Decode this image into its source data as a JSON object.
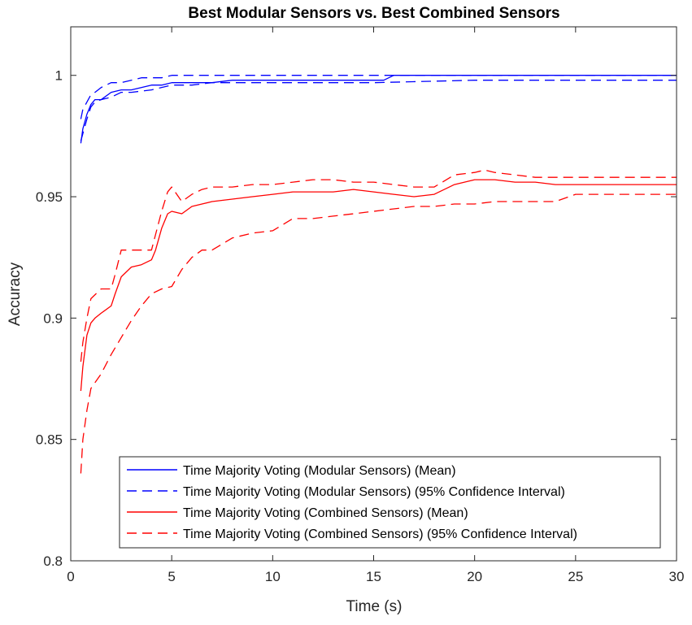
{
  "chart_data": {
    "type": "line",
    "title": "Best Modular Sensors vs. Best Combined Sensors",
    "xlabel": "Time (s)",
    "ylabel": "Accuracy",
    "xlim": [
      0,
      30
    ],
    "ylim": [
      0.8,
      1.02
    ],
    "xticks": [
      0,
      5,
      10,
      15,
      20,
      25,
      30
    ],
    "xtick_labels": [
      "0",
      "5",
      "10",
      "15",
      "20",
      "25",
      "30"
    ],
    "yticks": [
      0.8,
      0.85,
      0.9,
      0.95,
      1.0
    ],
    "ytick_labels": [
      "0.8",
      "0.85",
      "0.9",
      "0.95",
      "1"
    ],
    "grid": false,
    "legend_position": "bottom-right",
    "series": [
      {
        "name": "Time Majority Voting (Modular Sensors) (Mean)",
        "color": "#0000ff",
        "dash": "solid",
        "x": [
          0.5,
          0.6,
          0.8,
          1.0,
          1.2,
          1.5,
          2.0,
          2.5,
          3.0,
          4.0,
          4.5,
          5.0,
          6.0,
          7.0,
          8.0,
          10.0,
          12.0,
          14.0,
          15.5,
          16.0,
          20.0,
          25.0,
          30.0
        ],
        "y": [
          0.972,
          0.978,
          0.984,
          0.988,
          0.99,
          0.99,
          0.993,
          0.994,
          0.994,
          0.996,
          0.996,
          0.997,
          0.997,
          0.997,
          0.998,
          0.998,
          0.998,
          0.998,
          0.998,
          1.0,
          1.0,
          1.0,
          1.0
        ]
      },
      {
        "name": "Time Majority Voting (Modular Sensors) (95% Confidence Interval)",
        "color": "#0000ff",
        "dash": "dashed",
        "x": [
          0.5,
          0.6,
          0.8,
          1.0,
          1.2,
          1.5,
          2.0,
          2.5,
          3.0,
          3.5,
          4.0,
          4.5,
          5.0,
          6.0,
          7.0,
          8.0,
          10.0,
          15.0,
          20.0,
          25.0,
          30.0
        ],
        "y": [
          0.982,
          0.986,
          0.989,
          0.992,
          0.993,
          0.995,
          0.997,
          0.997,
          0.998,
          0.999,
          0.999,
          0.999,
          1.0,
          1.0,
          1.0,
          1.0,
          1.0,
          1.0,
          1.0,
          1.0,
          1.0
        ]
      },
      {
        "name": "Time Majority Voting (Modular Sensors) (95% Confidence Interval)",
        "color": "#0000ff",
        "dash": "dashed",
        "x": [
          0.5,
          0.6,
          0.8,
          1.0,
          1.2,
          1.5,
          2.0,
          2.5,
          3.0,
          4.0,
          5.0,
          6.0,
          7.0,
          8.0,
          10.0,
          15.0,
          20.0,
          25.0,
          30.0
        ],
        "y": [
          0.973,
          0.976,
          0.982,
          0.987,
          0.989,
          0.99,
          0.991,
          0.993,
          0.993,
          0.994,
          0.996,
          0.996,
          0.997,
          0.997,
          0.997,
          0.997,
          0.998,
          0.998,
          0.998
        ]
      },
      {
        "name": "Time Majority Voting (Combined Sensors) (Mean)",
        "color": "#ff0000",
        "dash": "solid",
        "x": [
          0.5,
          0.6,
          0.8,
          1.0,
          1.2,
          1.5,
          2.0,
          2.2,
          2.5,
          3.0,
          3.5,
          4.0,
          4.2,
          4.5,
          4.8,
          5.0,
          5.5,
          6.0,
          6.5,
          7.0,
          8.0,
          9.0,
          10.0,
          11.0,
          12.0,
          13.0,
          14.0,
          15.0,
          16.0,
          17.0,
          18.0,
          19.0,
          20.0,
          20.5,
          21.0,
          22.0,
          23.0,
          24.0,
          25.0,
          30.0
        ],
        "y": [
          0.87,
          0.88,
          0.893,
          0.898,
          0.9,
          0.902,
          0.905,
          0.91,
          0.917,
          0.921,
          0.922,
          0.924,
          0.928,
          0.937,
          0.943,
          0.944,
          0.943,
          0.946,
          0.947,
          0.948,
          0.949,
          0.95,
          0.951,
          0.952,
          0.952,
          0.952,
          0.953,
          0.952,
          0.951,
          0.95,
          0.951,
          0.955,
          0.957,
          0.957,
          0.957,
          0.956,
          0.956,
          0.955,
          0.955,
          0.955
        ]
      },
      {
        "name": "Time Majority Voting (Combined Sensors) (95% Confidence Interval)",
        "color": "#ff0000",
        "dash": "dashed",
        "x": [
          0.5,
          0.6,
          0.8,
          1.0,
          1.5,
          2.0,
          2.2,
          2.5,
          3.0,
          3.5,
          4.0,
          4.5,
          4.8,
          5.0,
          5.5,
          6.0,
          6.5,
          7.0,
          8.0,
          9.0,
          10.0,
          11.0,
          12.0,
          13.0,
          14.0,
          15.0,
          16.0,
          17.0,
          18.0,
          19.0,
          20.0,
          20.5,
          21.0,
          22.0,
          23.0,
          25.0,
          30.0
        ],
        "y": [
          0.882,
          0.89,
          0.9,
          0.908,
          0.912,
          0.912,
          0.918,
          0.928,
          0.928,
          0.928,
          0.928,
          0.944,
          0.952,
          0.954,
          0.948,
          0.951,
          0.953,
          0.954,
          0.954,
          0.955,
          0.955,
          0.956,
          0.957,
          0.957,
          0.956,
          0.956,
          0.955,
          0.954,
          0.954,
          0.959,
          0.96,
          0.961,
          0.96,
          0.959,
          0.958,
          0.958,
          0.958
        ]
      },
      {
        "name": "Time Majority Voting (Combined Sensors) (95% Confidence Interval)",
        "color": "#ff0000",
        "dash": "dashed",
        "x": [
          0.5,
          0.6,
          0.8,
          1.0,
          1.5,
          2.0,
          2.5,
          3.0,
          3.5,
          4.0,
          4.5,
          5.0,
          5.5,
          6.0,
          6.5,
          7.0,
          8.0,
          9.0,
          10.0,
          11.0,
          12.0,
          13.0,
          14.0,
          15.0,
          16.0,
          17.0,
          18.0,
          19.0,
          20.0,
          21.0,
          22.0,
          23.0,
          24.0,
          25.0,
          30.0
        ],
        "y": [
          0.836,
          0.85,
          0.862,
          0.871,
          0.877,
          0.885,
          0.892,
          0.899,
          0.905,
          0.91,
          0.912,
          0.913,
          0.92,
          0.925,
          0.928,
          0.928,
          0.933,
          0.935,
          0.936,
          0.941,
          0.941,
          0.942,
          0.943,
          0.944,
          0.945,
          0.946,
          0.946,
          0.947,
          0.947,
          0.948,
          0.948,
          0.948,
          0.948,
          0.951,
          0.951
        ]
      }
    ],
    "legend": [
      {
        "label": "Time Majority Voting (Modular Sensors) (Mean)",
        "color": "#0000ff",
        "dash": "solid"
      },
      {
        "label": "Time Majority Voting (Modular Sensors) (95% Confidence Interval)",
        "color": "#0000ff",
        "dash": "dashed"
      },
      {
        "label": "Time Majority Voting (Combined Sensors) (Mean)",
        "color": "#ff0000",
        "dash": "solid"
      },
      {
        "label": "Time Majority Voting (Combined Sensors) (95% Confidence Interval)",
        "color": "#ff0000",
        "dash": "dashed"
      }
    ]
  }
}
